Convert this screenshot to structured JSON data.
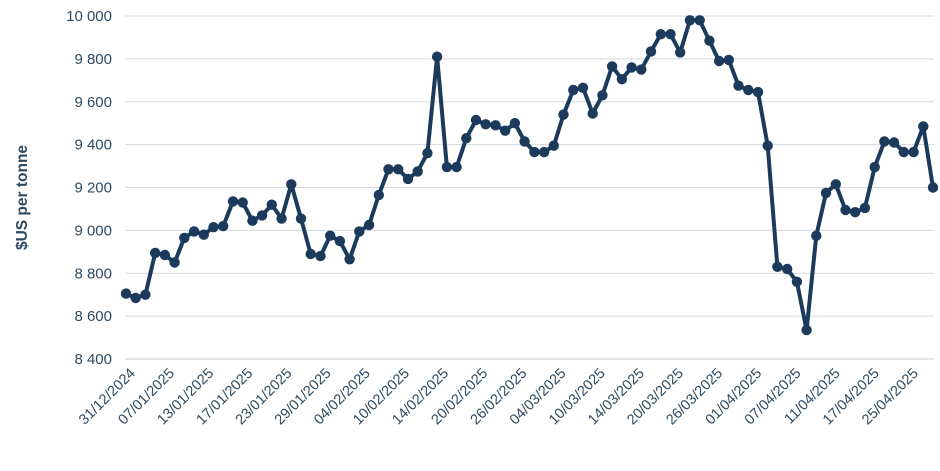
{
  "chart_data": {
    "type": "line",
    "ylabel": "$US per tonne",
    "xlabel": "",
    "ylim": [
      8400,
      10000
    ],
    "yticks": [
      8400,
      8600,
      8800,
      9000,
      9200,
      9400,
      9600,
      9800,
      10000
    ],
    "ytick_labels": [
      "8 400",
      "8 600",
      "8 800",
      "9 000",
      "9 200",
      "9 400",
      "9 600",
      "9 800",
      "10 000"
    ],
    "xtick_labels": [
      "31/12/2024",
      "07/01/2025",
      "13/01/2025",
      "17/01/2025",
      "23/01/2025",
      "29/01/2025",
      "04/02/2025",
      "10/02/2025",
      "14/02/2025",
      "20/02/2025",
      "26/02/2025",
      "04/03/2025",
      "10/03/2025",
      "14/03/2025",
      "20/03/2025",
      "26/03/2025",
      "01/04/2025",
      "07/04/2025",
      "11/04/2025",
      "17/04/2025",
      "25/04/2025"
    ],
    "grid": true,
    "line_color": "#1b3a5c",
    "marker_color": "#1b3a5c",
    "series": [
      {
        "values": [
          8705,
          8685,
          8700,
          8895,
          8885,
          8850,
          8965,
          8995,
          8980,
          9015,
          9020,
          9135,
          9130,
          9045,
          9070,
          9120,
          9055,
          9215,
          9055,
          8890,
          8880,
          8975,
          8950,
          8865,
          8995,
          9025,
          9165,
          9285,
          9285,
          9240,
          9275,
          9360,
          9810,
          9295,
          9295,
          9430,
          9515,
          9495,
          9490,
          9465,
          9500,
          9415,
          9365,
          9365,
          9395,
          9540,
          9655,
          9665,
          9545,
          9630,
          9765,
          9705,
          9760,
          9750,
          9835,
          9915,
          9915,
          9830,
          9980,
          9980,
          9885,
          9790,
          9795,
          9675,
          9655,
          9645,
          9395,
          8830,
          8820,
          8760,
          8535,
          8975,
          9175,
          9215,
          9095,
          9085,
          9105,
          9295,
          9415,
          9410,
          9365,
          9365,
          9485,
          9200
        ]
      }
    ]
  }
}
